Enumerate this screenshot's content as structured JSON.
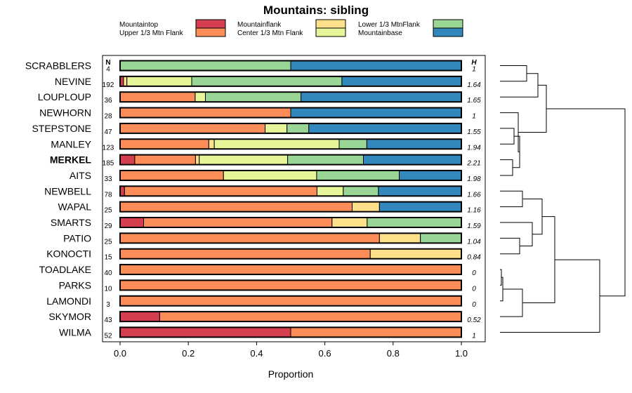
{
  "chart_data": {
    "type": "stacked-bar-horizontal",
    "title": "Mountains: sibling",
    "xlabel": "Proportion",
    "xlim": [
      0,
      1
    ],
    "xticks": [
      "0.0",
      "0.2",
      "0.4",
      "0.6",
      "0.8",
      "1.0"
    ],
    "n_header": "N",
    "h_header": "H",
    "legend": [
      {
        "name": "Mountaintop",
        "color": "#d53e4f"
      },
      {
        "name": "Upper 1/3 Mtn Flank",
        "color": "#fc8d59"
      },
      {
        "name": "Mountainflank",
        "color": "#fee08b"
      },
      {
        "name": "Center 1/3 Mtn Flank",
        "color": "#e6f598"
      },
      {
        "name": "Lower 1/3 MtnFlank",
        "color": "#99d594"
      },
      {
        "name": "Mountainbase",
        "color": "#3288bd"
      }
    ],
    "rows": [
      {
        "label": "SCRABBLERS",
        "n": "4",
        "h": "1",
        "bold": false,
        "values": [
          0,
          0,
          0,
          0,
          0.5,
          0.5
        ]
      },
      {
        "label": "NEVINE",
        "n": "192",
        "h": "1.64",
        "bold": false,
        "values": [
          0.01,
          0,
          0.01,
          0.19,
          0.44,
          0.35
        ]
      },
      {
        "label": "LOUPLOUP",
        "n": "36",
        "h": "1.65",
        "bold": false,
        "values": [
          0,
          0.22,
          0,
          0.03,
          0.28,
          0.47
        ]
      },
      {
        "label": "NEWHORN",
        "n": "28",
        "h": "1",
        "bold": false,
        "values": [
          0,
          0.5,
          0,
          0,
          0,
          0.5
        ]
      },
      {
        "label": "STEPSTONE",
        "n": "47",
        "h": "1.55",
        "bold": false,
        "values": [
          0,
          0.425,
          0,
          0.064,
          0.064,
          0.447
        ]
      },
      {
        "label": "MANLEY",
        "n": "123",
        "h": "1.94",
        "bold": false,
        "values": [
          0,
          0.26,
          0.016,
          0.366,
          0.081,
          0.277
        ]
      },
      {
        "label": "MERKEL",
        "n": "185",
        "h": "2.21",
        "bold": true,
        "values": [
          0.043,
          0.178,
          0.011,
          0.259,
          0.222,
          0.287
        ]
      },
      {
        "label": "AITS",
        "n": "33",
        "h": "1.98",
        "bold": false,
        "values": [
          0,
          0.303,
          0,
          0.273,
          0.242,
          0.182
        ]
      },
      {
        "label": "NEWBELL",
        "n": "78",
        "h": "1.66",
        "bold": false,
        "values": [
          0.013,
          0.564,
          0,
          0.077,
          0.103,
          0.243
        ]
      },
      {
        "label": "WAPAL",
        "n": "25",
        "h": "1.16",
        "bold": false,
        "values": [
          0,
          0.68,
          0.08,
          0,
          0,
          0.24
        ]
      },
      {
        "label": "SMARTS",
        "n": "29",
        "h": "1.59",
        "bold": false,
        "values": [
          0.069,
          0.552,
          0.103,
          0,
          0.276,
          0
        ]
      },
      {
        "label": "PATIO",
        "n": "25",
        "h": "1.04",
        "bold": false,
        "values": [
          0,
          0.76,
          0.12,
          0,
          0.12,
          0
        ]
      },
      {
        "label": "KONOCTI",
        "n": "15",
        "h": "0.84",
        "bold": false,
        "values": [
          0,
          0.733,
          0.267,
          0,
          0,
          0
        ]
      },
      {
        "label": "TOADLAKE",
        "n": "40",
        "h": "0",
        "bold": false,
        "values": [
          0,
          1,
          0,
          0,
          0,
          0
        ]
      },
      {
        "label": "PARKS",
        "n": "10",
        "h": "0",
        "bold": false,
        "values": [
          0,
          1,
          0,
          0,
          0,
          0
        ]
      },
      {
        "label": "LAMONDI",
        "n": "3",
        "h": "0",
        "bold": false,
        "values": [
          0,
          1,
          0,
          0,
          0,
          0
        ]
      },
      {
        "label": "SKYMOR",
        "n": "43",
        "h": "0.52",
        "bold": false,
        "values": [
          0.116,
          0.884,
          0,
          0,
          0,
          0
        ]
      },
      {
        "label": "WILMA",
        "n": "52",
        "h": "1",
        "bold": false,
        "values": [
          0.5,
          0.5,
          0,
          0,
          0,
          0
        ]
      }
    ],
    "dendrogram": {
      "nodes": [
        {
          "id": "A",
          "children": [
            0,
            1
          ],
          "height": 0.19
        },
        {
          "id": "B",
          "children": [
            "A",
            2
          ],
          "height": 0.27
        },
        {
          "id": "C",
          "children": [
            4,
            5
          ],
          "height": 0.1
        },
        {
          "id": "D",
          "children": [
            6,
            7
          ],
          "height": 0.09
        },
        {
          "id": "E",
          "children": [
            "C",
            "D"
          ],
          "height": 0.14
        },
        {
          "id": "F",
          "children": [
            3,
            "E"
          ],
          "height": 0.13
        },
        {
          "id": "G",
          "children": [
            "B",
            "F"
          ],
          "height": 0.33
        },
        {
          "id": "H",
          "children": [
            8,
            9
          ],
          "height": 0.16
        },
        {
          "id": "I",
          "children": [
            11,
            12
          ],
          "height": 0.14
        },
        {
          "id": "J",
          "children": [
            10,
            "I"
          ],
          "height": 0.23
        },
        {
          "id": "K",
          "children": [
            "H",
            "J"
          ],
          "height": 0.3
        },
        {
          "id": "L",
          "children": [
            13,
            14
          ],
          "height": 0.01
        },
        {
          "id": "M",
          "children": [
            15,
            "L"
          ],
          "height": 0.02
        },
        {
          "id": "N",
          "children": [
            16,
            "M"
          ],
          "height": 0.16
        },
        {
          "id": "O",
          "children": [
            "K",
            "N"
          ],
          "height": 0.39
        },
        {
          "id": "P",
          "children": [
            "O",
            17
          ],
          "height": 0.71
        },
        {
          "id": "Q",
          "children": [
            "G",
            "P"
          ],
          "height": 0.89
        }
      ]
    }
  }
}
